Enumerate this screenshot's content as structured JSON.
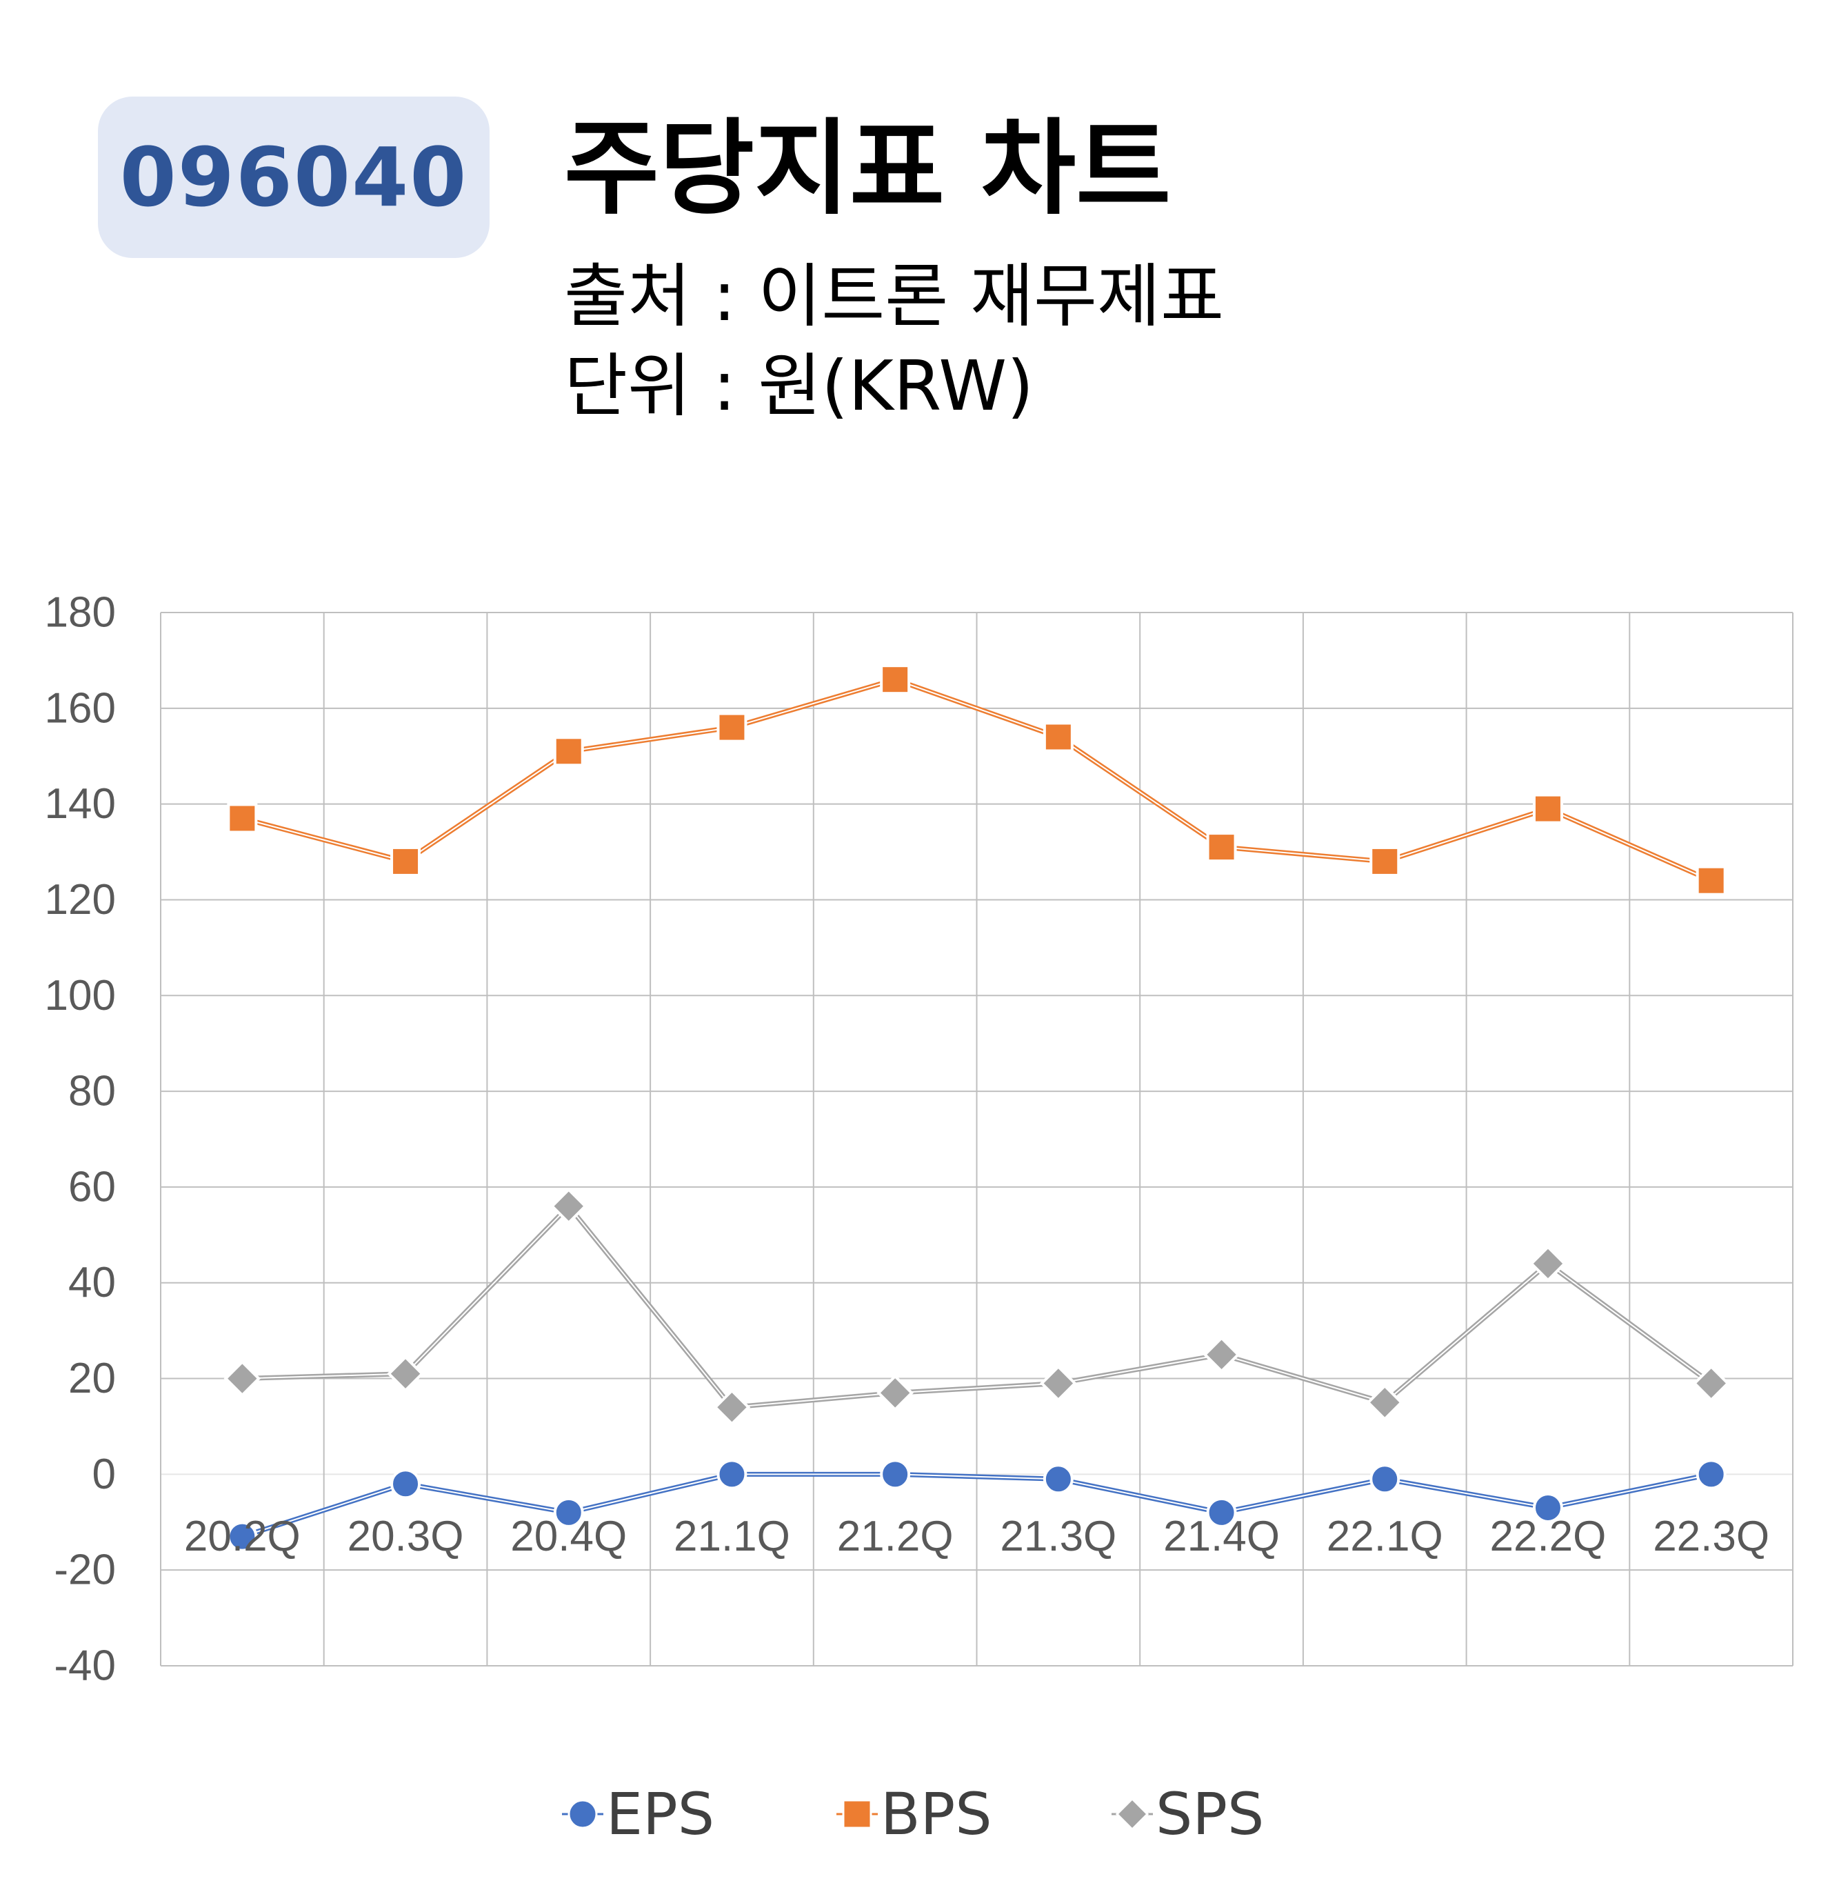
{
  "header": {
    "ticker": "096040",
    "title": "주당지표 차트",
    "source": "출처 : 이트론 재무제표",
    "unit": "단위 : 원(KRW)"
  },
  "colors": {
    "eps": "#4472c4",
    "bps": "#ed7d31",
    "sps": "#a5a5a5",
    "grid": "#bfbfbf",
    "axis_text": "#595959",
    "badge_bg": "#e2e8f5",
    "badge_text": "#2f5597"
  },
  "chart_data": {
    "type": "line",
    "categories": [
      "20.2Q",
      "20.3Q",
      "20.4Q",
      "21.1Q",
      "21.2Q",
      "21.3Q",
      "21.4Q",
      "22.1Q",
      "22.2Q",
      "22.3Q"
    ],
    "series": [
      {
        "name": "EPS",
        "marker": "circle",
        "values": [
          -13,
          -2,
          -8,
          0,
          0,
          -1,
          -8,
          -1,
          -7,
          0
        ]
      },
      {
        "name": "BPS",
        "marker": "square",
        "values": [
          137,
          128,
          151,
          156,
          166,
          154,
          131,
          128,
          139,
          124
        ]
      },
      {
        "name": "SPS",
        "marker": "diamond",
        "values": [
          20,
          21,
          56,
          14,
          17,
          19,
          25,
          15,
          44,
          19
        ]
      }
    ],
    "ylim": [
      -40,
      180
    ],
    "yticks": [
      -40,
      -20,
      0,
      20,
      40,
      60,
      80,
      100,
      120,
      140,
      160,
      180
    ],
    "grid": true,
    "legend": "bottom"
  }
}
